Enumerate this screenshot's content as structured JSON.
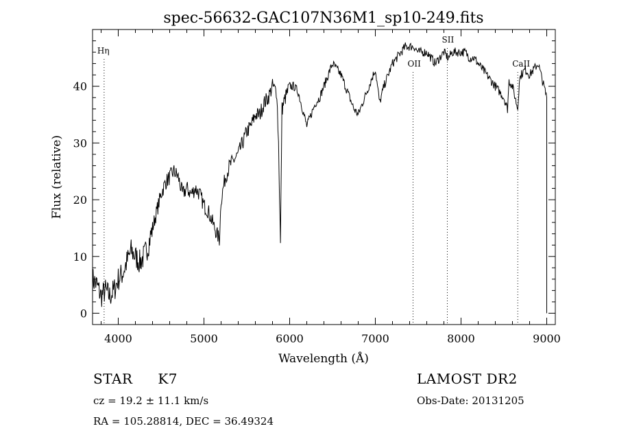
{
  "chart_data": {
    "type": "line",
    "title": "spec-56632-GAC107N36M1_sp10-249.fits",
    "xlabel": "Wavelength (Å)",
    "ylabel": "Flux (relative)",
    "xlim": [
      3700,
      9100
    ],
    "ylim": [
      -2,
      50
    ],
    "xticks": [
      4000,
      5000,
      6000,
      7000,
      8000,
      9000
    ],
    "yticks": [
      0,
      10,
      20,
      30,
      40
    ],
    "grid": false,
    "series": [
      {
        "x": [
          3700,
          3750,
          3800,
          3850,
          3900,
          3950,
          4000,
          4050,
          4100,
          4150,
          4200,
          4250,
          4300,
          4350,
          4400,
          4450,
          4500,
          4550,
          4600,
          4650,
          4700,
          4750,
          4800,
          4850,
          4900,
          4950,
          5000,
          5050,
          5100,
          5150,
          5180,
          5200,
          5250,
          5300,
          5350,
          5400,
          5450,
          5500,
          5550,
          5600,
          5650,
          5700,
          5750,
          5800,
          5850,
          5870,
          5893,
          5910,
          5950,
          6000,
          6050,
          6100,
          6150,
          6200,
          6250,
          6300,
          6350,
          6400,
          6450,
          6500,
          6550,
          6600,
          6650,
          6700,
          6750,
          6800,
          6850,
          6900,
          6950,
          7000,
          7050,
          7100,
          7150,
          7200,
          7250,
          7300,
          7350,
          7400,
          7450,
          7500,
          7550,
          7600,
          7650,
          7700,
          7750,
          7800,
          7850,
          7900,
          7950,
          8000,
          8050,
          8100,
          8150,
          8200,
          8250,
          8300,
          8350,
          8400,
          8450,
          8500,
          8542,
          8560,
          8600,
          8662,
          8680,
          8700,
          8750,
          8800,
          8850,
          8900,
          8950,
          9000
        ],
        "y": [
          6,
          5,
          3,
          4,
          3,
          4,
          6,
          7,
          9,
          11,
          10,
          9,
          10,
          12,
          15,
          18,
          21,
          23,
          24,
          25,
          24,
          21,
          22,
          21,
          22,
          21,
          19,
          18,
          16,
          14,
          13,
          20,
          24,
          26,
          27,
          28,
          30,
          32,
          33,
          35,
          35,
          37,
          38,
          40,
          39,
          30,
          12,
          36,
          38,
          40,
          40,
          39,
          36,
          33,
          35,
          37,
          38,
          40,
          42,
          44,
          43,
          42,
          40,
          38,
          36,
          35,
          37,
          39,
          41,
          43,
          37,
          40,
          42,
          44,
          45,
          46,
          47,
          47,
          47,
          46,
          46,
          46,
          45,
          44,
          45,
          46,
          45,
          46,
          46,
          46,
          46,
          45,
          45,
          44,
          43,
          42,
          41,
          40,
          39,
          38,
          36,
          41,
          40,
          36,
          41,
          42,
          43,
          42,
          43,
          44,
          41,
          38
        ]
      }
    ],
    "annotations": [
      {
        "label": "Hη",
        "x": 3835
      },
      {
        "label": "OII",
        "x": 7440
      },
      {
        "label": "SII",
        "x": 7840
      },
      {
        "label": "CaII",
        "x": 8662
      }
    ]
  },
  "info": {
    "object": "STAR",
    "subclass": "K7",
    "survey": "LAMOST DR2",
    "cz": "cz = 19.2 ± 11.1 km/s",
    "obs_date": "Obs-Date: 20131205",
    "coords": "RA = 105.28814, DEC =  36.49324"
  }
}
